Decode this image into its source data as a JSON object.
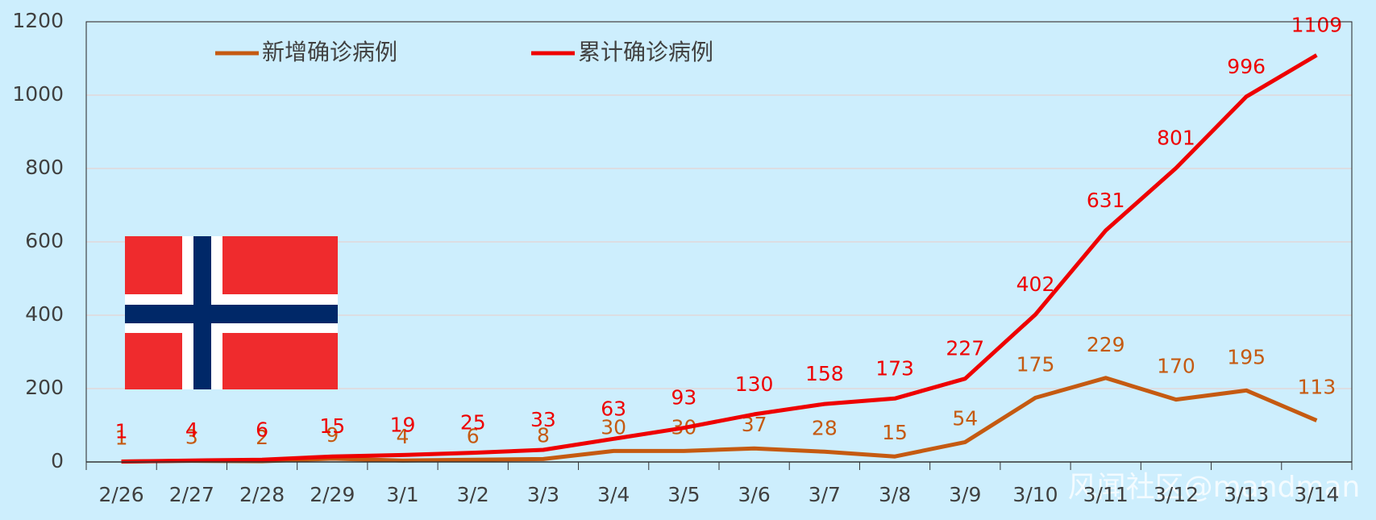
{
  "chart_data": {
    "type": "line",
    "categories": [
      "2/26",
      "2/27",
      "2/28",
      "2/29",
      "3/1",
      "3/2",
      "3/3",
      "3/4",
      "3/5",
      "3/6",
      "3/7",
      "3/8",
      "3/9",
      "3/10",
      "3/11",
      "3/12",
      "3/13",
      "3/14"
    ],
    "series": [
      {
        "name": "新增确诊病例",
        "color": "#c55a11",
        "values": [
          1,
          3,
          2,
          9,
          4,
          6,
          8,
          30,
          30,
          37,
          28,
          15,
          54,
          175,
          229,
          170,
          195,
          113
        ]
      },
      {
        "name": "累计确诊病例",
        "color": "#ee0000",
        "values": [
          1,
          4,
          6,
          15,
          19,
          25,
          33,
          63,
          93,
          130,
          158,
          173,
          227,
          402,
          631,
          801,
          996,
          1109
        ]
      }
    ],
    "ylim": [
      0,
      1200
    ],
    "yticks": [
      0,
      200,
      400,
      600,
      800,
      1000,
      1200
    ],
    "grid": true,
    "watermark": "风闻社区@mandman"
  }
}
